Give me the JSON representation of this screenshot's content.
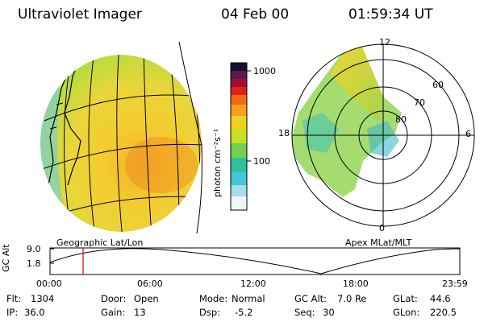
{
  "header": {
    "title": "Ultraviolet Imager",
    "date": "04 Feb 00",
    "time": "01:59:34 UT"
  },
  "colorbar": {
    "unit_label": "photon cm⁻²s⁻¹",
    "tick_labels": [
      "1000",
      "100"
    ],
    "colors": [
      "#1a1030",
      "#5a1a4a",
      "#a0102a",
      "#e02020",
      "#f06a10",
      "#f5a020",
      "#f0d020",
      "#c8e020",
      "#70d050",
      "#30c0a0",
      "#40c8d8",
      "#a8dce8",
      "#ffffff"
    ]
  },
  "left_panel": {
    "label": "Geographic Lat/Lon"
  },
  "right_panel": {
    "label": "Apex MLat/MLT",
    "mlt_labels": [
      "12",
      "6",
      "18",
      "0"
    ],
    "lat_labels": [
      "60",
      "70",
      "80"
    ]
  },
  "altitude_plot": {
    "y_axis_label": "GC Alt",
    "y_tick_labels": [
      "9.0",
      "1.8"
    ],
    "x_tick_labels": [
      "00:00",
      "06:00",
      "12:00",
      "18:00",
      "23:59"
    ],
    "marker_time": "01:59",
    "marker_color": "#e00000"
  },
  "info": {
    "flt_label": "Flt:",
    "flt_value": "1304",
    "door_label": "Door:",
    "door_value": "Open",
    "mode_label": "Mode:",
    "mode_value": "Normal",
    "gcalt_label": "GC Alt:",
    "gcalt_value": "7.0 Re",
    "glat_label": "GLat:",
    "glat_value": "44.6",
    "ip_label": "IP:",
    "ip_value": "36.0",
    "gain_label": "Gain:",
    "gain_value": "13",
    "dsp_label": "Dsp:",
    "dsp_value": "-5.2",
    "seq_label": "Seq:",
    "seq_value": "30",
    "glon_label": "GLon:",
    "glon_value": "220.5"
  }
}
